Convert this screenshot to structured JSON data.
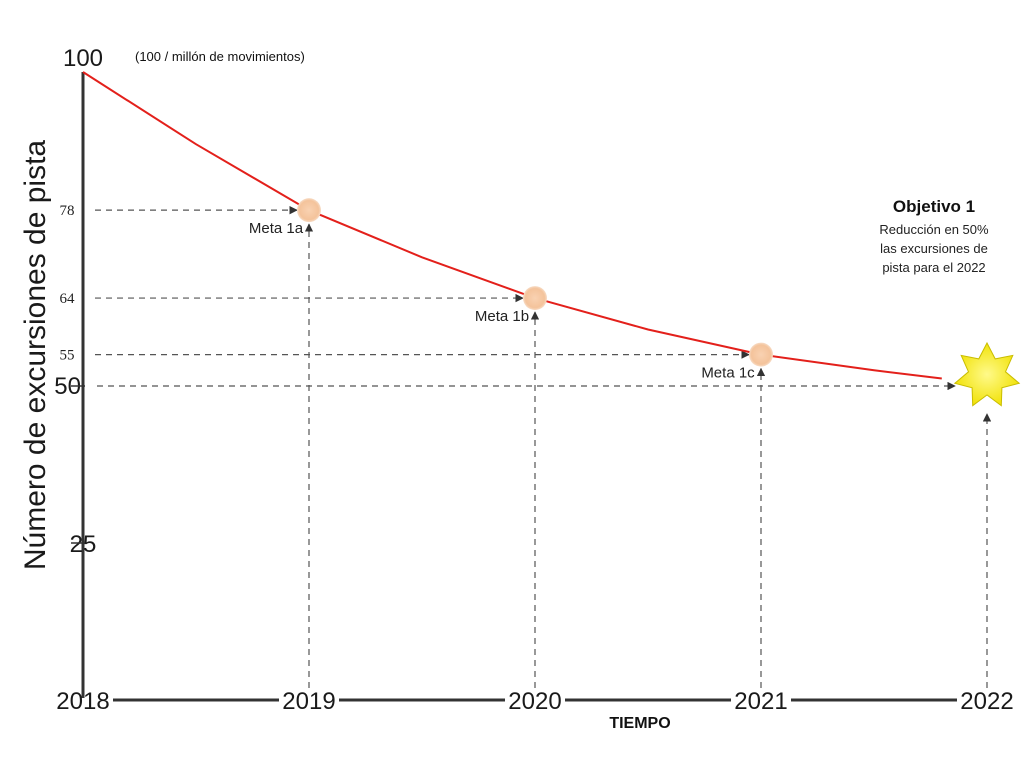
{
  "chart_data": {
    "type": "line",
    "title": "",
    "ylabel": "Número de excursiones de pista",
    "xlabel": "TIEMPO",
    "unit_note": "(100 / millón de movimientos)",
    "ylim": [
      0,
      100
    ],
    "xlim": [
      2018,
      2022
    ],
    "x_ticks": [
      "2018",
      "2019",
      "2020",
      "2021",
      "2022"
    ],
    "y_ticks_major": [
      "100",
      "50",
      "25"
    ],
    "y_ticks_minor": [
      "78",
      "64",
      "55"
    ],
    "grid": false,
    "series": [
      {
        "color": "#e3201b",
        "x": [
          2018,
          2018.5,
          2019,
          2019.5,
          2020,
          2020.5,
          2021,
          2021.5,
          2021.8
        ],
        "y": [
          100,
          88.5,
          78,
          70.5,
          64,
          59,
          55,
          52.5,
          51.2
        ]
      }
    ],
    "milestones": [
      {
        "label": "Meta 1a",
        "x": 2019,
        "y": 78,
        "y_label": "78"
      },
      {
        "label": "Meta 1b",
        "x": 2020,
        "y": 64,
        "y_label": "64"
      },
      {
        "label": "Meta 1c",
        "x": 2021,
        "y": 55,
        "y_label": "55"
      }
    ],
    "target": {
      "x": 2022,
      "y": 50,
      "title": "Objetivo 1",
      "description": [
        "Reducción en 50%",
        "las excursiones de",
        "pista para el 2022"
      ],
      "icon": "star-icon",
      "color": "#f2e600"
    },
    "colors": {
      "axis": "#333333",
      "guide": "#555555",
      "milestone_fill": "#f7c9a4"
    }
  }
}
